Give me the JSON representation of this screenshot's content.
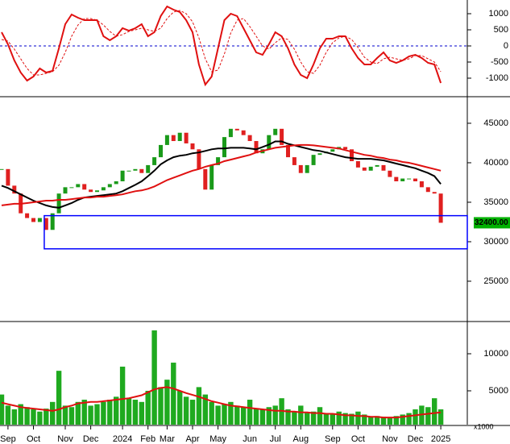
{
  "chart_data": [
    {
      "type": "line",
      "series": [
        {
          "color": "#e01010",
          "values": [
            425,
            50,
            -450,
            -825,
            -1075,
            -950,
            -700,
            -825,
            -775,
            -75,
            675,
            975,
            875,
            800,
            800,
            800,
            300,
            175,
            300,
            550,
            475,
            550,
            675,
            300,
            425,
            925,
            1225,
            1125,
            1050,
            800,
            425,
            -575,
            -1200,
            -950,
            -75,
            800,
            1000,
            925,
            550,
            175,
            -200,
            -275,
            50,
            425,
            300,
            -75,
            -575,
            -900,
            -1000,
            -575,
            -75,
            225,
            225,
            300,
            300,
            -75,
            -375,
            -575,
            -575,
            -375,
            -200,
            -450,
            -525,
            -450,
            -325,
            -275,
            -375,
            -525,
            -575,
            -1150
          ]
        },
        {
          "color": "#e01010",
          "dashed": true,
          "values": [
            200,
            150,
            -100,
            -400,
            -700,
            -900,
            -900,
            -850,
            -800,
            -600,
            -200,
            300,
            650,
            850,
            850,
            800,
            650,
            450,
            300,
            350,
            450,
            500,
            550,
            500,
            450,
            550,
            850,
            1050,
            1100,
            1000,
            750,
            250,
            -400,
            -800,
            -750,
            -250,
            400,
            800,
            850,
            600,
            300,
            0,
            -100,
            100,
            250,
            200,
            -100,
            -500,
            -800,
            -850,
            -600,
            -200,
            100,
            250,
            300,
            200,
            -50,
            -350,
            -500,
            -550,
            -400,
            -350,
            -400,
            -450,
            -400,
            -300,
            -300,
            -400,
            -500,
            -800
          ]
        }
      ],
      "zero_line": true,
      "zero_color": "#0000cc",
      "ylim": [
        -1525,
        1425
      ],
      "yticks": [
        1000,
        500,
        0,
        -500,
        -1000
      ]
    },
    {
      "type": "candlestick",
      "values": [
        39200,
        37100,
        36100,
        33600,
        33000,
        32500,
        33000,
        31500,
        33600,
        36100,
        36900,
        36900,
        37300,
        36600,
        36300,
        36500,
        36900,
        37300,
        37650,
        39000,
        39000,
        39200,
        38700,
        39700,
        40700,
        42250,
        43500,
        42750,
        43800,
        42450,
        41700,
        39200,
        36600,
        39700,
        40700,
        43250,
        44300,
        44100,
        43500,
        42750,
        41200,
        41700,
        43500,
        44300,
        42250,
        40700,
        39700,
        38700,
        39700,
        41000,
        41200,
        41400,
        41700,
        42000,
        41700,
        40200,
        39400,
        39000,
        39500,
        39700,
        39000,
        38200,
        37650,
        38000,
        38000,
        37650,
        36900,
        36300,
        36100,
        32400
      ],
      "up_color": "#1a9a1a",
      "down_color": "#e02020",
      "series": [
        {
          "color": "#000000",
          "values": [
            37100,
            36800,
            36400,
            36000,
            35600,
            35200,
            34900,
            34600,
            34400,
            34300,
            34600,
            34900,
            35300,
            35600,
            35700,
            35800,
            35900,
            36000,
            36100,
            36400,
            36800,
            37200,
            37650,
            38300,
            39000,
            39800,
            40300,
            40700,
            40900,
            41000,
            41200,
            41300,
            41500,
            41700,
            41800,
            41800,
            41900,
            41900,
            41900,
            41800,
            41700,
            42000,
            42300,
            42700,
            42700,
            42400,
            42200,
            42000,
            41800,
            41600,
            41500,
            41300,
            41100,
            40900,
            40700,
            40600,
            40500,
            40500,
            40500,
            40400,
            40300,
            40100,
            39900,
            39700,
            39500,
            39300,
            39000,
            38700,
            38300,
            37300
          ]
        },
        {
          "color": "#e01010",
          "values": [
            34600,
            34700,
            34800,
            34800,
            34900,
            35000,
            35100,
            35200,
            35200,
            35300,
            35300,
            35400,
            35500,
            35600,
            35600,
            35700,
            35700,
            35800,
            35900,
            36000,
            36200,
            36400,
            36500,
            36700,
            37000,
            37400,
            37800,
            38100,
            38400,
            38700,
            39000,
            39200,
            39500,
            39700,
            39900,
            40200,
            40400,
            40600,
            40800,
            41000,
            41300,
            41500,
            41700,
            41900,
            42000,
            42100,
            42200,
            42250,
            42250,
            42200,
            42100,
            42000,
            41900,
            41800,
            41600,
            41400,
            41200,
            41000,
            40900,
            40700,
            40600,
            40400,
            40300,
            40100,
            40000,
            39800,
            39600,
            39400,
            39200,
            39000
          ]
        }
      ],
      "zone": [
        29100,
        33300
      ],
      "zone_color": "#0000ff",
      "price_label": "32400.00",
      "price_label_color": "#00b000",
      "ylim": [
        20100,
        48160
      ],
      "yticks": [
        45000,
        40000,
        35000,
        30000,
        25000
      ]
    },
    {
      "type": "bar",
      "categories": [
        null,
        "Sep",
        null,
        null,
        null,
        "Oct",
        null,
        null,
        null,
        null,
        "Nov",
        null,
        null,
        null,
        "Dec",
        null,
        null,
        null,
        null,
        "2024",
        null,
        null,
        null,
        "Feb",
        null,
        null,
        "Mar",
        null,
        null,
        null,
        "Apr",
        null,
        null,
        null,
        "May",
        null,
        null,
        null,
        null,
        "Jun",
        null,
        null,
        null,
        "Jul",
        null,
        null,
        null,
        "Aug",
        null,
        null,
        null,
        null,
        "Sep",
        null,
        null,
        null,
        "Oct",
        null,
        null,
        null,
        null,
        "Nov",
        null,
        null,
        null,
        "Dec",
        null,
        null,
        null,
        "2025"
      ],
      "values": [
        4500,
        3000,
        2500,
        3200,
        2800,
        2500,
        2200,
        2600,
        3500,
        7700,
        3000,
        2800,
        3500,
        3800,
        3000,
        3200,
        3500,
        3800,
        4200,
        8260,
        4000,
        3800,
        3500,
        5000,
        13150,
        5500,
        6500,
        8800,
        5000,
        4200,
        3800,
        5500,
        4500,
        3500,
        3000,
        3200,
        3500,
        3000,
        2800,
        3800,
        2600,
        2500,
        2800,
        3000,
        4000,
        2500,
        2200,
        3000,
        2000,
        2200,
        2800,
        2000,
        1800,
        2200,
        2000,
        1900,
        2200,
        1800,
        1500,
        1600,
        1500,
        1400,
        1600,
        1800,
        2000,
        2500,
        3000,
        2800,
        4000,
        2500
      ],
      "color": "#1faa1f",
      "series": [
        {
          "color": "#e01010",
          "values": [
            3400,
            3200,
            3000,
            2800,
            2700,
            2600,
            2500,
            2400,
            2300,
            2500,
            2800,
            3000,
            3300,
            3400,
            3500,
            3500,
            3600,
            3700,
            3800,
            3900,
            4000,
            4200,
            4400,
            4800,
            5200,
            5400,
            5500,
            5300,
            5000,
            4700,
            4450,
            4200,
            3900,
            3600,
            3400,
            3200,
            3000,
            2900,
            2800,
            2700,
            2600,
            2500,
            2400,
            2300,
            2300,
            2200,
            2200,
            2100,
            2100,
            2000,
            2000,
            1900,
            1900,
            1800,
            1700,
            1700,
            1600,
            1600,
            1500,
            1500,
            1400,
            1400,
            1400,
            1500,
            1600,
            1700,
            1800,
            1900,
            2000,
            2100
          ]
        }
      ],
      "units_label": "x1000",
      "ylim": [
        435,
        14130
      ],
      "yticks": [
        10000,
        5000
      ]
    }
  ]
}
